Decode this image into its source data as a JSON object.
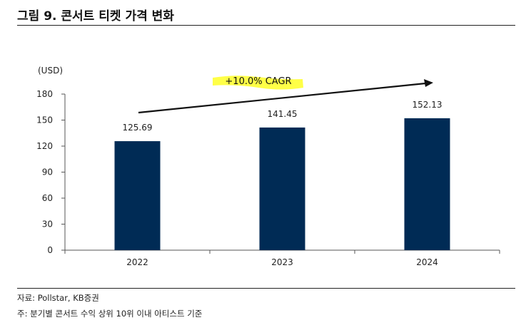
{
  "figure": {
    "title": "그림 9. 콘서트 티켓 가격 변화",
    "source": "자료: Pollstar, KB증권",
    "footnote": "주: 분기별 콘서트 수익 상위 10위 이내 아티스트 기준"
  },
  "colors": {
    "bar": "#002B55",
    "highlight": "#FFFF33",
    "axis": "#555555",
    "arrow": "#111111"
  },
  "chart_data": {
    "type": "bar",
    "title": "",
    "ylabel": "(USD)",
    "xlabel": "",
    "categories": [
      "2022",
      "2023",
      "2024"
    ],
    "values": [
      125.69,
      141.45,
      152.13
    ],
    "value_labels": [
      "125.69",
      "141.45",
      "152.13"
    ],
    "ylim": [
      0,
      180
    ],
    "yticks": [
      0,
      30,
      60,
      90,
      120,
      150,
      180
    ],
    "grid": false,
    "legend": "none",
    "annotation": "+10.0% CAGR"
  }
}
